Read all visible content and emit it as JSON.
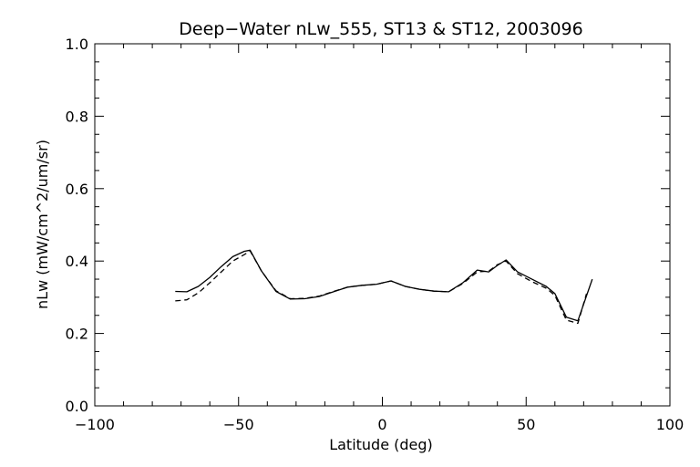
{
  "chart_data": {
    "type": "line",
    "title": "Deep−Water nLw_555, ST13 & ST12, 2003096",
    "xlabel": "Latitude (deg)",
    "ylabel": "nLw (mW/cm^2/um/sr)",
    "xlim": [
      -100,
      100
    ],
    "ylim": [
      0.0,
      1.0
    ],
    "x_ticks": [
      -100,
      -50,
      0,
      50,
      100
    ],
    "x_tick_labels": [
      "−100",
      "−50",
      "0",
      "50",
      "100"
    ],
    "y_ticks": [
      0.0,
      0.2,
      0.4,
      0.6,
      0.8,
      1.0
    ],
    "y_tick_labels": [
      "0.0",
      "0.2",
      "0.4",
      "0.6",
      "0.8",
      "1.0"
    ],
    "grid": false,
    "series": [
      {
        "style": "solid",
        "color": "#000000",
        "x": [
          -72,
          -68,
          -64,
          -60,
          -56,
          -52,
          -48,
          -46,
          -42,
          -37,
          -32,
          -27,
          -22,
          -17,
          -12,
          -7,
          -2,
          3,
          8,
          13,
          18,
          23,
          28,
          33,
          37,
          40,
          43,
          47,
          52,
          57,
          60,
          64,
          68,
          73
        ],
        "y": [
          0.316,
          0.315,
          0.33,
          0.355,
          0.385,
          0.412,
          0.427,
          0.43,
          0.372,
          0.316,
          0.295,
          0.296,
          0.302,
          0.315,
          0.328,
          0.333,
          0.336,
          0.345,
          0.33,
          0.322,
          0.317,
          0.315,
          0.34,
          0.375,
          0.37,
          0.388,
          0.403,
          0.37,
          0.35,
          0.33,
          0.31,
          0.245,
          0.235,
          0.35
        ]
      },
      {
        "style": "dashed",
        "color": "#000000",
        "x": [
          -72,
          -68,
          -64,
          -60,
          -56,
          -52,
          -48,
          -46,
          -42,
          -37,
          -32,
          -27,
          -22,
          -17,
          -12,
          -7,
          -2,
          3,
          8,
          13,
          18,
          23,
          28,
          33,
          37,
          40,
          43,
          47,
          52,
          57,
          60,
          64,
          68,
          71
        ],
        "y": [
          0.29,
          0.293,
          0.312,
          0.34,
          0.37,
          0.4,
          0.418,
          0.428,
          0.372,
          0.318,
          0.296,
          0.297,
          0.303,
          0.316,
          0.328,
          0.333,
          0.336,
          0.345,
          0.33,
          0.322,
          0.317,
          0.315,
          0.338,
          0.37,
          0.372,
          0.39,
          0.4,
          0.365,
          0.343,
          0.325,
          0.305,
          0.237,
          0.228,
          0.31
        ]
      }
    ]
  }
}
